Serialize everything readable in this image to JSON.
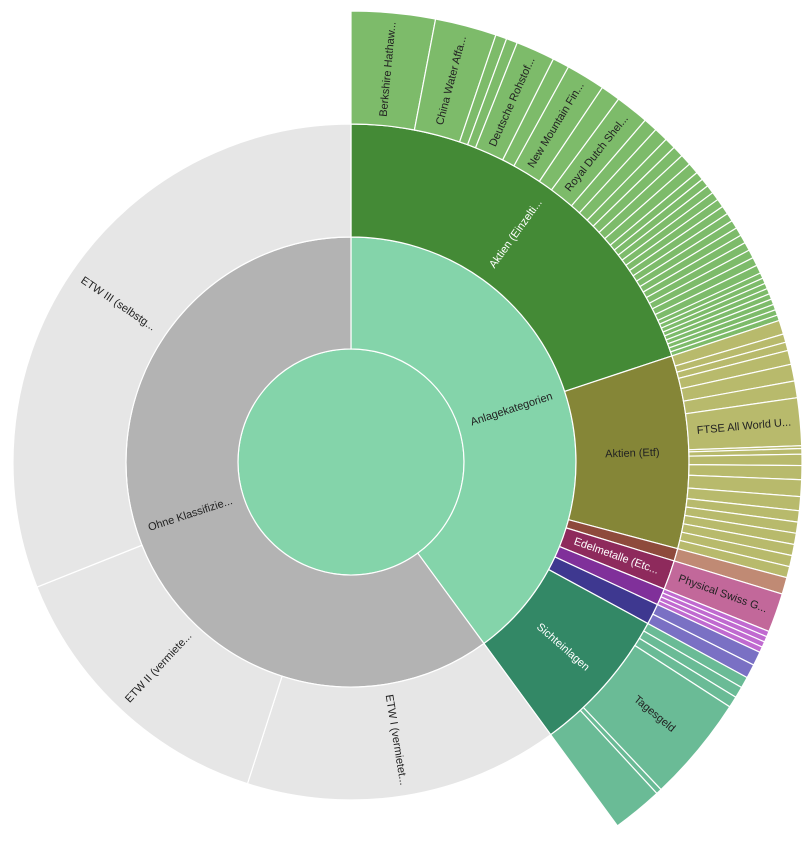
{
  "chart_data": {
    "type": "sunburst",
    "root": {
      "name": "",
      "color": "#84d4aa",
      "value": 1000,
      "children": [
        {
          "name": "Anlagekategorien",
          "label": "Anlagekategorien",
          "color": "#84d4aa",
          "value": 400,
          "children": [
            {
              "name": "Aktien (Einzeltitel)",
              "label": "Aktien (Einzelti...",
              "color": "#448a36",
              "label_color": "#ffffff",
              "value": 200,
              "children": [
                {
                  "name": "Berkshire Hathaway",
                  "label": "Berkshire Hathaw...",
                  "color": "#7dbb6a",
                  "value": 30
                },
                {
                  "name": "China Water Affairs",
                  "label": "China Water Affa...",
                  "color": "#7dbb6a",
                  "value": 22
                },
                {
                  "name": "",
                  "color": "#7dbb6a",
                  "value": 4
                },
                {
                  "name": "",
                  "color": "#7dbb6a",
                  "value": 4
                },
                {
                  "name": "Deutsche Rohstoff",
                  "label": "Deutsche Rohstof...",
                  "color": "#7dbb6a",
                  "value": 14
                },
                {
                  "name": "",
                  "color": "#7dbb6a",
                  "value": 6
                },
                {
                  "name": "New Mountain Finance",
                  "label": "New Mountain Fin...",
                  "color": "#7dbb6a",
                  "value": 14
                },
                {
                  "name": "",
                  "color": "#7dbb6a",
                  "value": 7
                },
                {
                  "name": "Royal Dutch Shell",
                  "label": "Royal Dutch Shel...",
                  "color": "#7dbb6a",
                  "value": 12
                },
                {
                  "name": "",
                  "color": "#7dbb6a",
                  "value": 5
                },
                {
                  "name": "",
                  "color": "#7dbb6a",
                  "value": 5
                },
                {
                  "name": "",
                  "color": "#7dbb6a",
                  "value": 4
                },
                {
                  "name": "",
                  "color": "#7dbb6a",
                  "value": 4
                },
                {
                  "name": "",
                  "color": "#7dbb6a",
                  "value": 4
                },
                {
                  "name": "",
                  "color": "#7dbb6a",
                  "value": 4
                },
                {
                  "name": "",
                  "color": "#7dbb6a",
                  "value": 3
                },
                {
                  "name": "",
                  "color": "#7dbb6a",
                  "value": 3
                },
                {
                  "name": "",
                  "color": "#7dbb6a",
                  "value": 3
                },
                {
                  "name": "",
                  "color": "#7dbb6a",
                  "value": 3
                },
                {
                  "name": "",
                  "color": "#7dbb6a",
                  "value": 3
                },
                {
                  "name": "",
                  "color": "#7dbb6a",
                  "value": 3
                },
                {
                  "name": "",
                  "color": "#7dbb6a",
                  "value": 3
                },
                {
                  "name": "",
                  "color": "#7dbb6a",
                  "value": 3
                },
                {
                  "name": "",
                  "color": "#7dbb6a",
                  "value": 3
                },
                {
                  "name": "",
                  "color": "#7dbb6a",
                  "value": 3
                },
                {
                  "name": "",
                  "color": "#7dbb6a",
                  "value": 3
                },
                {
                  "name": "",
                  "color": "#7dbb6a",
                  "value": 3
                },
                {
                  "name": "",
                  "color": "#7dbb6a",
                  "value": 3
                },
                {
                  "name": "",
                  "color": "#7dbb6a",
                  "value": 3
                },
                {
                  "name": "",
                  "color": "#7dbb6a",
                  "value": 2
                },
                {
                  "name": "",
                  "color": "#7dbb6a",
                  "value": 2
                },
                {
                  "name": "",
                  "color": "#7dbb6a",
                  "value": 2
                },
                {
                  "name": "",
                  "color": "#7dbb6a",
                  "value": 2
                },
                {
                  "name": "",
                  "color": "#7dbb6a",
                  "value": 2
                },
                {
                  "name": "",
                  "color": "#7dbb6a",
                  "value": 2
                },
                {
                  "name": "",
                  "color": "#7dbb6a",
                  "value": 2
                },
                {
                  "name": "",
                  "color": "#7dbb6a",
                  "value": 2
                },
                {
                  "name": "",
                  "color": "#7dbb6a",
                  "value": 2
                }
              ]
            },
            {
              "name": "Aktien (Etf)",
              "label": "Aktien (Etf)",
              "color": "#858637",
              "value": 92,
              "children": [
                {
                  "name": "",
                  "color": "#b8ba6c",
                  "value": 5
                },
                {
                  "name": "",
                  "color": "#b8ba6c",
                  "value": 3
                },
                {
                  "name": "",
                  "color": "#b8ba6c",
                  "value": 3
                },
                {
                  "name": "",
                  "color": "#b8ba6c",
                  "value": 5
                },
                {
                  "name": "",
                  "color": "#b8ba6c",
                  "value": 6
                },
                {
                  "name": "",
                  "color": "#b8ba6c",
                  "value": 6
                },
                {
                  "name": "FTSE All World UCITS",
                  "label": "FTSE All World U...",
                  "color": "#b8ba6c",
                  "value": 17
                },
                {
                  "name": "",
                  "color": "#b8ba6c",
                  "value": 1
                },
                {
                  "name": "",
                  "color": "#b8ba6c",
                  "value": 2
                },
                {
                  "name": "",
                  "color": "#b8ba6c",
                  "value": 4
                },
                {
                  "name": "",
                  "color": "#b8ba6c",
                  "value": 5
                },
                {
                  "name": "",
                  "color": "#b8ba6c",
                  "value": 6
                },
                {
                  "name": "",
                  "color": "#b8ba6c",
                  "value": 5
                },
                {
                  "name": "",
                  "color": "#b8ba6c",
                  "value": 4
                },
                {
                  "name": "",
                  "color": "#b8ba6c",
                  "value": 4
                },
                {
                  "name": "",
                  "color": "#b8ba6c",
                  "value": 4
                },
                {
                  "name": "",
                  "color": "#b8ba6c",
                  "value": 4
                },
                {
                  "name": "",
                  "color": "#b8ba6c",
                  "value": 4
                },
                {
                  "name": "",
                  "color": "#b8ba6c",
                  "value": 4
                }
              ]
            },
            {
              "name": "",
              "color": "#8e4a3c",
              "value": 6,
              "children": [
                {
                  "name": "",
                  "color": "#c08a74",
                  "value": 6
                }
              ]
            },
            {
              "name": "Edelmetalle (Etc)",
              "label": "Edelmetalle (Etc...",
              "color": "#8e2a5c",
              "label_color": "#ffffff",
              "value": 14,
              "children": [
                {
                  "name": "Physical Swiss Gold",
                  "label": "Physical Swiss G...",
                  "color": "#c2689a",
                  "value": 14
                }
              ]
            },
            {
              "name": "",
              "color": "#80309a",
              "value": 8,
              "children": [
                {
                  "name": "",
                  "color": "#c06ad0",
                  "value": 2
                },
                {
                  "name": "",
                  "color": "#c06ad0",
                  "value": 2
                },
                {
                  "name": "",
                  "color": "#c06ad0",
                  "value": 2
                },
                {
                  "name": "",
                  "color": "#c06ad0",
                  "value": 2
                }
              ]
            },
            {
              "name": "",
              "color": "#3e3890",
              "value": 10,
              "children": [
                {
                  "name": "",
                  "color": "#7a70c4",
                  "value": 5
                },
                {
                  "name": "",
                  "color": "#7a70c4",
                  "value": 5
                }
              ]
            },
            {
              "name": "Sichteinlagen",
              "label": "Sichteinlagen",
              "color": "#338866",
              "label_color": "#ffffff",
              "value": 70,
              "children": [
                {
                  "name": "",
                  "color": "#6abb96",
                  "value": 4
                },
                {
                  "name": "",
                  "color": "#6abb96",
                  "value": 4
                },
                {
                  "name": "",
                  "color": "#6abb96",
                  "value": 4
                },
                {
                  "name": "Tagesgeld",
                  "label": "Tagesgeld",
                  "color": "#6abb96",
                  "value": 38
                },
                {
                  "name": "",
                  "color": "#6abb96",
                  "value": 2
                },
                {
                  "name": "",
                  "color": "#6abb96",
                  "value": 18
                }
              ]
            }
          ]
        },
        {
          "name": "Ohne Klassifizierung",
          "label": "Ohne Klassifizie...",
          "color": "#b3b3b3",
          "value": 600,
          "children": [
            {
              "name": "ETW I (vermietet)",
              "label": "ETW I (vermietet...",
              "color": "#e6e6e6",
              "value": 150
            },
            {
              "name": "ETW II (vermietet)",
              "label": "ETW II (vermiete...",
              "color": "#e6e6e6",
              "value": 140
            },
            {
              "name": "ETW III (selbstgenutzt)",
              "label": "ETW III (selbstg...",
              "color": "#e6e6e6",
              "value": 310
            }
          ]
        }
      ]
    }
  }
}
